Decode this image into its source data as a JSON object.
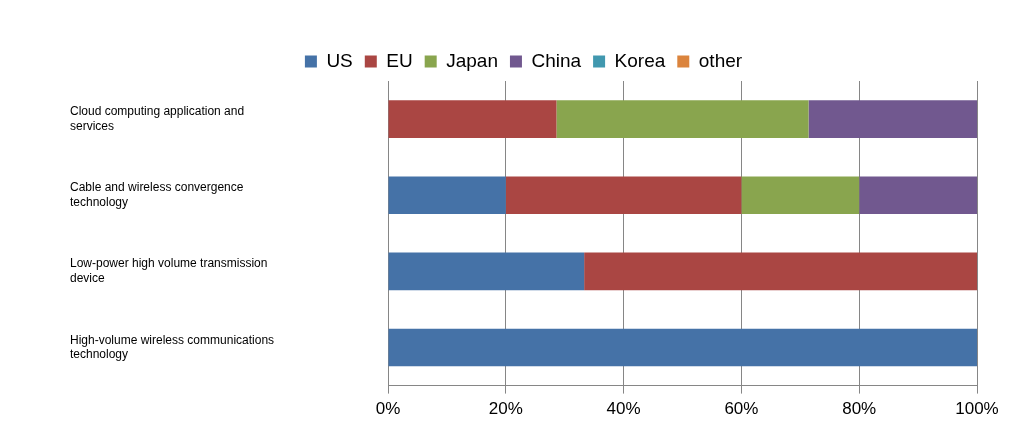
{
  "chart_data": {
    "type": "bar",
    "orientation": "horizontal",
    "stacked": true,
    "categories": [
      "Cloud computing application and services",
      "Cable and wireless convergence technology",
      "Low-power high volume transmission device",
      "High-volume wireless communications technology"
    ],
    "series": [
      {
        "name": "US",
        "color": "#4572a7",
        "values": [
          0,
          20,
          33.3,
          100
        ]
      },
      {
        "name": "EU",
        "color": "#aa4643",
        "values": [
          28.6,
          40,
          66.7,
          0
        ]
      },
      {
        "name": "Japan",
        "color": "#89a54e",
        "values": [
          42.8,
          20,
          0,
          0
        ]
      },
      {
        "name": "China",
        "color": "#71588f",
        "values": [
          28.6,
          20,
          0,
          0
        ]
      },
      {
        "name": "Korea",
        "color": "#4198af",
        "values": [
          0,
          0,
          0,
          0
        ]
      },
      {
        "name": "other",
        "color": "#db843d",
        "values": [
          0,
          0,
          0,
          0
        ]
      }
    ],
    "xlim": [
      0,
      100
    ],
    "xticks": [
      {
        "value": 0,
        "label": "0%"
      },
      {
        "value": 20,
        "label": "20%"
      },
      {
        "value": 40,
        "label": "40%"
      },
      {
        "value": 60,
        "label": "60%"
      },
      {
        "value": 80,
        "label": "80%"
      },
      {
        "value": 100,
        "label": "100%"
      }
    ],
    "grid": true,
    "legend": "top"
  }
}
